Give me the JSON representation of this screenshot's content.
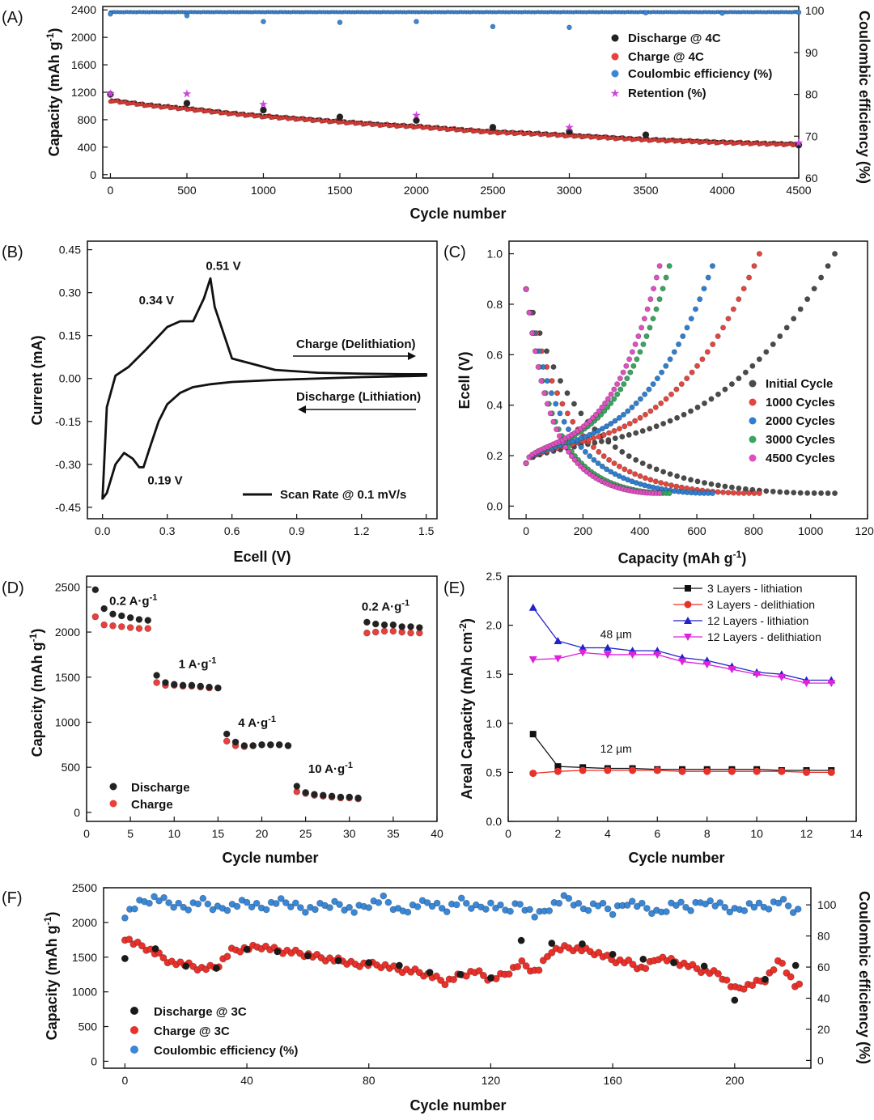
{
  "chart_data": [
    {
      "panel": "(A)",
      "type": "scatter",
      "xlabel": "Cycle number",
      "ylabel": "Capacity (mAh g-1)",
      "ylabel_base": "Capacity (mAh g",
      "ylabel_sup": "-1",
      "ylabel_end": ")",
      "y2label": "Coulombic efficiency (%)",
      "xlim": [
        -50,
        4500
      ],
      "ylim": [
        -50,
        2450
      ],
      "y2lim": [
        60,
        101
      ],
      "xticks": [
        0,
        500,
        1000,
        1500,
        2000,
        2500,
        3000,
        3500,
        4000,
        4500
      ],
      "yticks": [
        0,
        400,
        800,
        1200,
        1600,
        2000,
        2400
      ],
      "y2ticks": [
        60,
        70,
        80,
        90,
        100
      ],
      "series": [
        {
          "name": "Discharge @ 4C",
          "color": "#222222",
          "x": [
            0,
            500,
            1000,
            1500,
            2000,
            2500,
            3000,
            3500,
            4500
          ],
          "y": [
            1170,
            1040,
            940,
            840,
            790,
            690,
            630,
            580,
            430
          ]
        },
        {
          "name": "Charge @ 4C",
          "color": "#e8403b",
          "x": [
            0,
            250,
            500,
            750,
            1000,
            1250,
            1500,
            1750,
            2000,
            2250,
            2500,
            2750,
            3000,
            3250,
            3500,
            3750,
            4000,
            4250,
            4500
          ],
          "y": [
            1080,
            1010,
            960,
            900,
            850,
            810,
            770,
            730,
            700,
            660,
            620,
            600,
            570,
            540,
            510,
            490,
            470,
            455,
            440
          ]
        },
        {
          "name": "Coulombic efficiency (%)",
          "color": "#3a87d6",
          "axis": "right",
          "x": [
            0,
            500,
            1000,
            1500,
            2000,
            2500,
            3000,
            3500,
            4000,
            4500
          ],
          "y": [
            99.2,
            98.8,
            97.4,
            97.2,
            97.4,
            96.2,
            96.0,
            99.5,
            99.4,
            99.6
          ]
        },
        {
          "name": "Retention (%)",
          "color": "#cc44dd",
          "marker": "star",
          "x": [
            0,
            500,
            1000,
            2000,
            3000,
            4500
          ],
          "y": [
            1180,
            1180,
            1030,
            870,
            690,
            470
          ]
        }
      ]
    },
    {
      "panel": "(B)",
      "type": "line",
      "xlabel": "Ecell (V)",
      "ylabel": "Current (mA)",
      "xlim": [
        -0.07,
        1.55
      ],
      "ylim": [
        -0.49,
        0.48
      ],
      "xticks": [
        "0.0",
        "0.3",
        "0.6",
        "0.9",
        "1.2",
        "1.5"
      ],
      "yticks": [
        "-0.45",
        "-0.30",
        "-0.15",
        "0.00",
        "0.15",
        "0.30",
        "0.45"
      ],
      "series": [
        {
          "name": "Scan Rate @ 0.1 mV/s",
          "color": "#111111",
          "x": [
            0.0,
            0.02,
            0.06,
            0.1,
            0.14,
            0.17,
            0.19,
            0.22,
            0.26,
            0.3,
            0.36,
            0.42,
            0.5,
            0.6,
            0.8,
            1.0,
            1.2,
            1.4,
            1.5,
            1.5,
            1.4,
            1.2,
            1.0,
            0.8,
            0.6,
            0.52,
            0.5,
            0.47,
            0.42,
            0.36,
            0.3,
            0.2,
            0.12,
            0.06,
            0.02,
            0.0
          ],
          "y": [
            -0.42,
            -0.4,
            -0.3,
            -0.26,
            -0.28,
            -0.31,
            -0.31,
            -0.24,
            -0.15,
            -0.09,
            -0.05,
            -0.03,
            -0.02,
            -0.012,
            -0.005,
            0.0,
            0.005,
            0.008,
            0.01,
            0.015,
            0.015,
            0.017,
            0.02,
            0.03,
            0.07,
            0.25,
            0.35,
            0.28,
            0.2,
            0.2,
            0.18,
            0.1,
            0.04,
            0.01,
            -0.1,
            -0.42
          ]
        }
      ],
      "annotations": [
        {
          "text": "0.51 V",
          "x": 0.56,
          "y": 0.38
        },
        {
          "text": "0.34 V",
          "x": 0.25,
          "y": 0.26
        },
        {
          "text": "0.19 V",
          "x": 0.29,
          "y": -0.37
        }
      ],
      "arrows": [
        "Charge (Delithiation)",
        "Discharge (Lithiation)"
      ]
    },
    {
      "panel": "(C)",
      "type": "scatter",
      "xlabel": "Capacity (mAh g-1)",
      "xlabel_base": "Capacity (mAh g",
      "xlabel_sup": "-1",
      "xlabel_end": ")",
      "ylabel": "Ecell (V)",
      "xlim": [
        -60,
        1200
      ],
      "ylim": [
        -0.05,
        1.05
      ],
      "xticks": [
        0,
        200,
        400,
        600,
        800,
        1000,
        1200
      ],
      "yticks": [
        "0.0",
        "0.2",
        "0.4",
        "0.6",
        "0.8",
        "1.0"
      ],
      "series": [
        {
          "name": "Initial Cycle",
          "color": "#4a4a4a",
          "cap": 1085
        },
        {
          "name": "1000 Cycles",
          "color": "#e2473f",
          "cap": 820
        },
        {
          "name": "2000 Cycles",
          "color": "#2f7fd0",
          "cap": 670
        },
        {
          "name": "3000 Cycles",
          "color": "#3aa560",
          "cap": 515
        },
        {
          "name": "4500 Cycles",
          "color": "#e04fc0",
          "cap": 480
        }
      ]
    },
    {
      "panel": "(D)",
      "type": "scatter",
      "xlabel": "Cycle number",
      "ylabel": "Capacity (mAh g-1)",
      "ylabel_base": "Capacity (mAh g",
      "ylabel_sup": "-1",
      "ylabel_end": ")",
      "xlim": [
        0,
        40
      ],
      "ylim": [
        -100,
        2620
      ],
      "xticks": [
        0,
        5,
        10,
        15,
        20,
        25,
        30,
        35,
        40
      ],
      "yticks": [
        0,
        500,
        1000,
        1500,
        2000,
        2500
      ],
      "series": [
        {
          "name": "Discharge",
          "color": "#222222",
          "x": [
            1,
            2,
            3,
            4,
            5,
            6,
            7,
            8,
            9,
            10,
            11,
            12,
            13,
            14,
            15,
            16,
            17,
            18,
            19,
            20,
            21,
            22,
            23,
            24,
            25,
            26,
            27,
            28,
            29,
            30,
            31,
            32,
            33,
            34,
            35,
            36,
            37,
            38
          ],
          "y": [
            2470,
            2260,
            2200,
            2180,
            2160,
            2140,
            2130,
            1520,
            1440,
            1420,
            1410,
            1410,
            1400,
            1390,
            1380,
            870,
            780,
            740,
            740,
            750,
            750,
            750,
            740,
            290,
            220,
            200,
            190,
            180,
            170,
            170,
            160,
            2110,
            2090,
            2080,
            2080,
            2060,
            2060,
            2050
          ]
        },
        {
          "name": "Charge",
          "color": "#e8403b",
          "x": [
            1,
            2,
            3,
            4,
            5,
            6,
            7,
            8,
            9,
            10,
            11,
            12,
            13,
            14,
            15,
            16,
            17,
            18,
            19,
            20,
            21,
            22,
            23,
            24,
            25,
            26,
            27,
            28,
            29,
            30,
            31,
            32,
            33,
            34,
            35,
            36,
            37,
            38
          ],
          "y": [
            2170,
            2080,
            2070,
            2060,
            2050,
            2040,
            2040,
            1440,
            1410,
            1410,
            1400,
            1400,
            1390,
            1380,
            1380,
            790,
            740,
            730,
            740,
            750,
            750,
            750,
            740,
            230,
            210,
            190,
            180,
            170,
            160,
            160,
            150,
            1990,
            2000,
            2010,
            2010,
            2000,
            1990,
            1990
          ]
        }
      ],
      "annotations": [
        {
          "text": "0.2 A g-1",
          "base": "0.2 A·g",
          "sup": "-1",
          "x": 2.6,
          "y": 2300
        },
        {
          "text": "1 A g-1",
          "base": "1 A·g",
          "sup": "-1",
          "x": 10.5,
          "y": 1600
        },
        {
          "text": "4 A g-1",
          "base": "4 A·g",
          "sup": "-1",
          "x": 17.3,
          "y": 950
        },
        {
          "text": "10 A g-1",
          "base": "10 A·g",
          "sup": "-1",
          "x": 25.3,
          "y": 440
        },
        {
          "text": "0.2 A g-1",
          "base": "0.2 A·g",
          "sup": "-1",
          "x": 31.4,
          "y": 2240
        }
      ]
    },
    {
      "panel": "(E)",
      "type": "line",
      "xlabel": "Cycle number",
      "ylabel": "Areal Capacity (mAh cm-2)",
      "ylabel_base": "Areal Capacity (mAh cm",
      "ylabel_sup": "-2",
      "ylabel_end": ")",
      "xlim": [
        0,
        14
      ],
      "ylim": [
        0,
        2.5
      ],
      "xticks": [
        0,
        2,
        4,
        6,
        8,
        10,
        12,
        14
      ],
      "yticks": [
        "0.0",
        "0.5",
        "1.0",
        "1.5",
        "2.0",
        "2.5"
      ],
      "x": [
        1,
        2,
        3,
        4,
        5,
        6,
        7,
        8,
        9,
        10,
        11,
        12,
        13
      ],
      "series": [
        {
          "name": "3 Layers - lithiation",
          "color": "#111111",
          "marker": "square",
          "values": [
            0.89,
            0.56,
            0.55,
            0.54,
            0.54,
            0.53,
            0.53,
            0.53,
            0.53,
            0.53,
            0.52,
            0.52,
            0.52
          ]
        },
        {
          "name": "3 Layers - delithiation",
          "color": "#e8312a",
          "marker": "circle",
          "values": [
            0.49,
            0.51,
            0.52,
            0.52,
            0.52,
            0.52,
            0.51,
            0.51,
            0.51,
            0.51,
            0.51,
            0.5,
            0.5
          ]
        },
        {
          "name": "12 Layers - lithiation",
          "color": "#2222cc",
          "marker": "triangle-up",
          "values": [
            2.18,
            1.84,
            1.77,
            1.77,
            1.74,
            1.74,
            1.67,
            1.64,
            1.58,
            1.52,
            1.5,
            1.44,
            1.44
          ]
        },
        {
          "name": "12 Layers - delithiation",
          "color": "#dd22dd",
          "marker": "triangle-down",
          "values": [
            1.65,
            1.66,
            1.72,
            1.7,
            1.7,
            1.7,
            1.63,
            1.6,
            1.55,
            1.5,
            1.47,
            1.41,
            1.41
          ]
        }
      ],
      "annotations": [
        {
          "text": "48 µm",
          "x": 3.7,
          "y": 1.87
        },
        {
          "text": "12 µm",
          "x": 3.7,
          "y": 0.7
        }
      ]
    },
    {
      "panel": "(F)",
      "type": "scatter",
      "xlabel": "Cycle number",
      "ylabel": "Capacity (mAh g-1)",
      "ylabel_base": "Capacity (mAh g",
      "ylabel_sup": "-1",
      "ylabel_end": ")",
      "y2label": "Coulombic efficiency (%)",
      "xlim": [
        -7,
        225
      ],
      "ylim": [
        -100,
        2500
      ],
      "y2lim": [
        -5,
        111
      ],
      "xticks": [
        0,
        40,
        80,
        120,
        160,
        200
      ],
      "yticks": [
        0,
        500,
        1000,
        1500,
        2000,
        2500
      ],
      "y2ticks": [
        0,
        20,
        40,
        60,
        80,
        100
      ],
      "series": [
        {
          "name": "Discharge @ 3C",
          "color": "#1a1a1a",
          "x": [
            0,
            10,
            20,
            30,
            40,
            50,
            60,
            70,
            80,
            90,
            100,
            110,
            120,
            130,
            140,
            150,
            160,
            170,
            180,
            190,
            200,
            210,
            220
          ],
          "y": [
            1480,
            1620,
            1370,
            1340,
            1610,
            1580,
            1520,
            1450,
            1420,
            1380,
            1280,
            1250,
            1200,
            1740,
            1700,
            1690,
            1540,
            1470,
            1420,
            1370,
            880,
            1180,
            1380
          ]
        },
        {
          "name": "Charge @ 3C",
          "color": "#e8312a",
          "x": [
            0,
            3,
            6,
            10,
            15,
            20,
            25,
            30,
            35,
            40,
            45,
            50,
            55,
            60,
            65,
            70,
            75,
            80,
            85,
            90,
            95,
            100,
            105,
            110,
            115,
            120,
            125,
            130,
            135,
            140,
            145,
            150,
            155,
            160,
            165,
            170,
            175,
            180,
            185,
            190,
            195,
            200,
            205,
            210,
            215,
            220
          ],
          "y": [
            1780,
            1700,
            1660,
            1560,
            1430,
            1380,
            1320,
            1340,
            1580,
            1610,
            1640,
            1580,
            1560,
            1520,
            1470,
            1440,
            1400,
            1400,
            1380,
            1320,
            1300,
            1240,
            1140,
            1240,
            1300,
            1180,
            1260,
            1420,
            1280,
            1600,
            1640,
            1610,
            1560,
            1460,
            1430,
            1330,
            1500,
            1440,
            1380,
            1300,
            1260,
            1040,
            1100,
            1180,
            1460,
            1080
          ]
        },
        {
          "name": "Coulombic efficiency (%)",
          "color": "#3a87d6",
          "axis": "right",
          "x": [
            0,
            5,
            10,
            15,
            20,
            25,
            30,
            35,
            40,
            45,
            50,
            55,
            60,
            65,
            70,
            75,
            80,
            85,
            90,
            95,
            100,
            105,
            110,
            115,
            120,
            125,
            130,
            135,
            140,
            145,
            150,
            155,
            160,
            165,
            170,
            175,
            180,
            185,
            190,
            195,
            200,
            205,
            210,
            215,
            220
          ],
          "y": [
            94,
            101,
            104,
            100,
            98,
            102,
            97,
            99,
            101,
            98,
            102,
            100,
            97,
            99,
            101,
            96,
            100,
            103,
            95,
            99,
            101,
            97,
            102,
            98,
            100,
            96,
            101,
            92,
            99,
            104,
            97,
            100,
            95,
            102,
            98,
            94,
            101,
            97,
            103,
            99,
            96,
            100,
            98,
            102,
            95
          ]
        }
      ]
    }
  ]
}
